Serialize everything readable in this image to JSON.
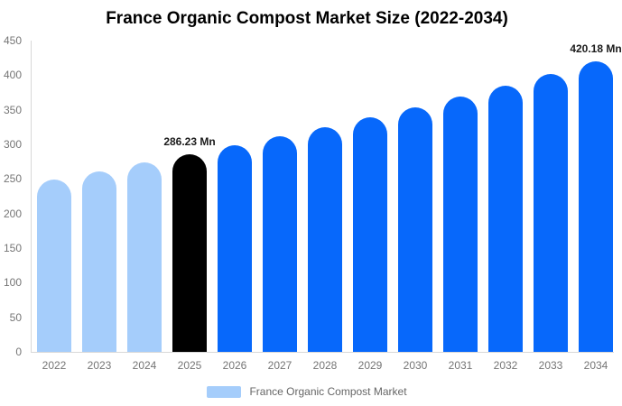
{
  "title": "France Organic Compost Market Size (2022-2034)",
  "legend": {
    "swatch_color": "#a5cdfb",
    "label": "France Organic Compost Market"
  },
  "colors": {
    "historical_bar": "#a5cdfb",
    "highlight_bar": "#000000",
    "forecast_bar": "#0768fb",
    "axis_line": "#d8d8d8",
    "tick_label": "#757575",
    "data_label": "#1b1b1b",
    "title_text": "#000000",
    "legend_text": "#666666",
    "background": "#ffffff"
  },
  "chart_data": {
    "type": "bar",
    "title": "France Organic Compost Market Size (2022-2034)",
    "xlabel": "",
    "ylabel": "",
    "unit": "Mn",
    "categories": [
      "2022",
      "2023",
      "2024",
      "2025",
      "2026",
      "2027",
      "2028",
      "2029",
      "2030",
      "2031",
      "2032",
      "2033",
      "2034"
    ],
    "values": [
      249,
      261,
      274,
      286.23,
      299,
      312,
      325,
      339,
      354,
      369,
      385,
      402,
      420.18
    ],
    "bar_colors": [
      "#a5cdfb",
      "#a5cdfb",
      "#a5cdfb",
      "#000000",
      "#0768fb",
      "#0768fb",
      "#0768fb",
      "#0768fb",
      "#0768fb",
      "#0768fb",
      "#0768fb",
      "#0768fb",
      "#0768fb"
    ],
    "data_labels": [
      {
        "category": "2025",
        "text": "286.23 Mn"
      },
      {
        "category": "2034",
        "text": "420.18 Mn"
      }
    ],
    "ylim": [
      0,
      450
    ],
    "y_ticks": [
      0,
      50,
      100,
      150,
      200,
      250,
      300,
      350,
      400,
      450
    ],
    "grid": false,
    "legend_position": "bottom",
    "series_name": "France Organic Compost Market"
  }
}
